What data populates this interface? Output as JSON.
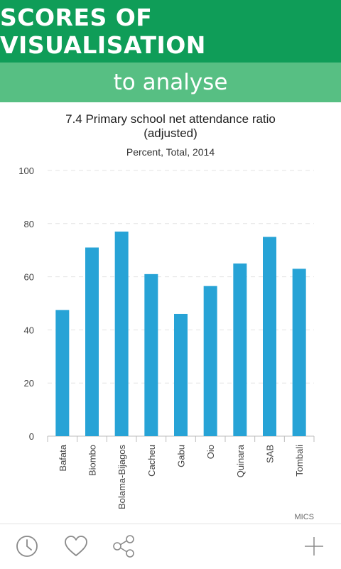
{
  "banner": {
    "title": "SCORES OF VISUALISATION",
    "subtitle": "to analyse"
  },
  "chart": {
    "title_line1": "7.4 Primary school net attendance ratio",
    "title_line2": "(adjusted)",
    "subtitle": "Percent, Total, 2014",
    "source": "MICS"
  },
  "chart_data": {
    "type": "bar",
    "title": "7.4 Primary school net attendance ratio (adjusted)",
    "subtitle": "Percent, Total, 2014",
    "categories": [
      "Bafata",
      "Biombo",
      "Bolama-Bijagos",
      "Cacheu",
      "Gabu",
      "Oio",
      "Quinara",
      "SAB",
      "Tombali"
    ],
    "values": [
      47.5,
      71,
      77,
      61,
      46,
      56.5,
      65,
      75,
      63
    ],
    "ylim": [
      0,
      100
    ],
    "yticks": [
      0,
      20,
      40,
      60,
      80,
      100
    ],
    "grid": true,
    "bar_color": "#27a3d6",
    "xlabel": "",
    "ylabel": ""
  },
  "toolbar": {
    "icons": [
      "clock-icon",
      "heart-icon",
      "share-icon",
      "plus-icon"
    ]
  },
  "colors": {
    "banner_dark": "#0f9d58",
    "banner_light": "#57bf83",
    "bar": "#27a3d6"
  }
}
